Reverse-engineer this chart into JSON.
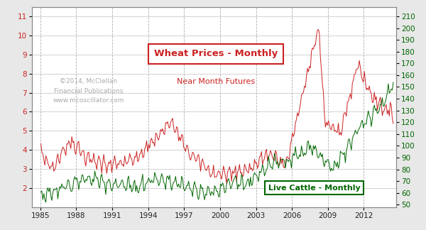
{
  "title": "Wheat Prices - Monthly",
  "subtitle": "Near Month Futures",
  "cattle_label": "Live Cattle - Monthly",
  "watermark_line1": "©2014, McClellan",
  "watermark_line2": "Financial Publications",
  "watermark_line3": "www.mcoscillator.com",
  "wheat_color": "#cc2222",
  "cattle_color": "#006600",
  "background_color": "#e8e8e8",
  "plot_bg_color": "#ffffff",
  "left_yticks": [
    2,
    3,
    4,
    5,
    6,
    7,
    8,
    9,
    10,
    11
  ],
  "right_yticks": [
    50,
    60,
    70,
    80,
    90,
    100,
    110,
    120,
    130,
    140,
    150,
    160,
    170,
    180,
    190,
    200,
    210
  ],
  "ylim_wheat": [
    1.0,
    11.5
  ],
  "ylim_cattle": [
    48,
    218
  ],
  "xticks": [
    1985,
    1988,
    1991,
    1994,
    1997,
    2000,
    2003,
    2006,
    2009,
    2012
  ],
  "start_year": 1985,
  "end_year": 2014
}
